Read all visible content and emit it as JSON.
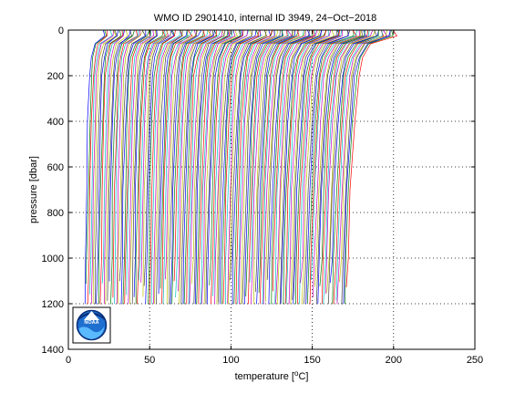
{
  "chart_data": {
    "type": "line",
    "title": "WMO ID 2901410, internal ID 3949, 24−Oct−2018",
    "xlabel": "temperature [",
    "xlabel_unit": "o",
    "xlabel_tail": "C]",
    "ylabel": "pressure [dbar]",
    "xlim": [
      0,
      250
    ],
    "ylim": [
      1400,
      0
    ],
    "y_reversed": true,
    "grid": true,
    "grid_style": "dotted",
    "xticks": [
      "0",
      "50",
      "100",
      "150",
      "200",
      "250"
    ],
    "yticks": [
      "0",
      "200",
      "400",
      "600",
      "800",
      "1000",
      "1200",
      "1400"
    ],
    "series_colors": [
      "#0000ff",
      "#008000",
      "#ff0000",
      "#00bfbf",
      "#bf00bf",
      "#bfbf00",
      "#404040"
    ],
    "profiles": {
      "count": 150,
      "first_bottom_x": 10,
      "last_bottom_x": 171,
      "first_top_x": 22,
      "last_top_x": 201,
      "surface_pressure": 0,
      "bottom_pressure": 1200,
      "mixed_layer_pressure": 40,
      "thermocline_pressure": 250,
      "representative_profile": [
        {
          "pressure": 0,
          "temperature_offset": 12
        },
        {
          "pressure": 25,
          "temperature_offset": 12
        },
        {
          "pressure": 60,
          "temperature_offset": 6
        },
        {
          "pressure": 120,
          "temperature_offset": 4
        },
        {
          "pressure": 200,
          "temperature_offset": 3
        },
        {
          "pressure": 400,
          "temperature_offset": 2
        },
        {
          "pressure": 700,
          "temperature_offset": 1
        },
        {
          "pressure": 1000,
          "temperature_offset": 0.4
        },
        {
          "pressure": 1200,
          "temperature_offset": 0
        }
      ]
    }
  },
  "logo": {
    "name": "noaa-logo",
    "text": "NOAA"
  }
}
